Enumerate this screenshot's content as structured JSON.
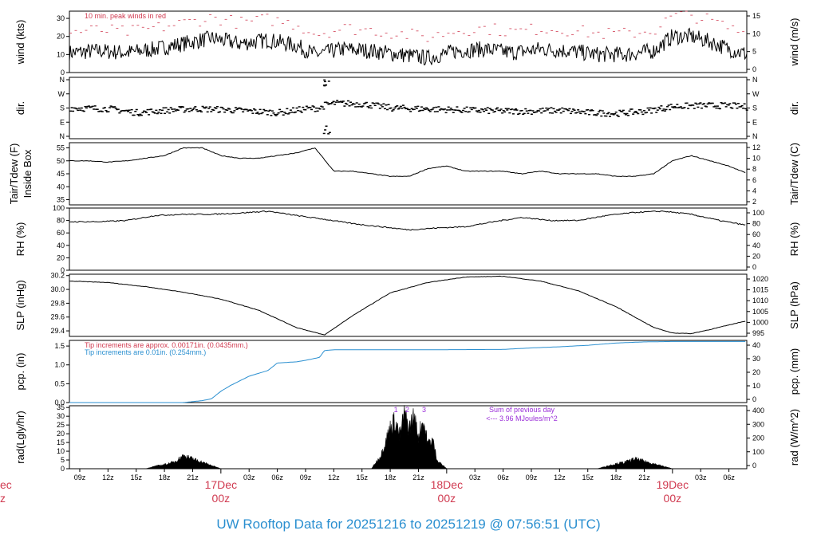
{
  "title": "UW Rooftop Data for 20251216  to  20251219 @ 07:56:51  (UTC)",
  "colors": {
    "main": "#000000",
    "peak": "#d03a50",
    "tip_new": "#2a8fd0",
    "note": "#9b30d9",
    "date": "#d03a50"
  },
  "x_axis": {
    "tick_labels": [
      "09z",
      "12z",
      "15z",
      "18z",
      "21z",
      "03z",
      "06z",
      "09z",
      "12z",
      "15z",
      "18z",
      "21z",
      "03z",
      "06z",
      "09z",
      "12z",
      "15z",
      "18z",
      "21z",
      "03z",
      "06z"
    ],
    "tick_hours": [
      9,
      12,
      15,
      18,
      21,
      27,
      30,
      33,
      36,
      39,
      42,
      45,
      51,
      54,
      57,
      60,
      63,
      66,
      69,
      75,
      78
    ],
    "date_labels": [
      {
        "hour": 24,
        "date": "17Dec",
        "time": "00z"
      },
      {
        "hour": 48,
        "date": "18Dec",
        "time": "00z"
      },
      {
        "hour": 72,
        "date": "19Dec",
        "time": "00z"
      }
    ],
    "left_cut_date": "ec",
    "left_cut_time": "z",
    "range_hours": [
      7.9,
      79.9
    ]
  },
  "chart_data": [
    {
      "type": "line",
      "ylabel_left": "wind (kts)",
      "ylabel_right": "wind (m/s)",
      "left_ticks": [
        "0",
        "10",
        "20",
        "30"
      ],
      "left_range": [
        0,
        34
      ],
      "right_ticks": [
        "0",
        "5",
        "10",
        "15"
      ],
      "annotation": "10 min. peak winds in red",
      "series": [
        {
          "values_hour": [
            8,
            11,
            14,
            17,
            20,
            23,
            26,
            29,
            32,
            34,
            37,
            40,
            43,
            46,
            49,
            52,
            55,
            58,
            61,
            64,
            67,
            70,
            72,
            74,
            76,
            78,
            80
          ],
          "values": [
            11,
            12,
            11,
            13,
            16,
            19,
            16,
            18,
            15,
            10,
            13,
            12,
            10,
            8,
            12,
            13,
            11,
            13,
            12,
            10,
            10,
            12,
            20,
            20,
            17,
            13,
            10
          ]
        }
      ]
    },
    {
      "type": "scatter",
      "ylabel_left": "dir.",
      "ylabel_right": "dir.",
      "left_ticks": [
        "N",
        "E",
        "S",
        "W",
        "N"
      ],
      "right_ticks": [
        "N",
        "E",
        "S",
        "W",
        "N"
      ],
      "series": [
        {
          "values_hour": [
            8,
            12,
            15,
            18,
            21,
            24,
            27,
            30,
            33,
            34.5,
            35,
            36,
            39,
            42,
            45,
            48,
            51,
            54,
            57,
            60,
            63,
            66,
            69,
            72,
            75,
            78,
            80
          ],
          "values_deg": [
            180,
            175,
            150,
            165,
            175,
            170,
            160,
            150,
            175,
            180,
            200,
            210,
            205,
            180,
            175,
            170,
            165,
            160,
            160,
            165,
            150,
            145,
            160,
            190,
            195,
            195,
            185
          ]
        }
      ]
    },
    {
      "type": "line",
      "ylabel_left": "Tair/Tdew (F)\nInside Box",
      "ylabel_right": "Tair/Tdew (C)",
      "left_ticks": [
        "35",
        "40",
        "45",
        "50",
        "55"
      ],
      "left_range": [
        33,
        57
      ],
      "right_ticks": [
        "2",
        "4",
        "6",
        "8",
        "10",
        "12"
      ],
      "series": [
        {
          "values_hour": [
            8,
            10,
            12,
            14,
            16,
            18,
            20,
            22,
            24,
            26,
            28,
            30,
            32,
            34,
            36,
            38,
            40,
            42,
            44,
            46,
            48,
            50,
            52,
            54,
            56,
            58,
            60,
            62,
            64,
            66,
            68,
            70,
            72,
            74,
            76,
            78,
            80
          ],
          "values": [
            50,
            50,
            49.5,
            50,
            51,
            52,
            55,
            55,
            52,
            51,
            51,
            52,
            53,
            55,
            46,
            46,
            45,
            44,
            44,
            47,
            48,
            46,
            46,
            46,
            45,
            46,
            45,
            45,
            45,
            44,
            44,
            45,
            50,
            52,
            50,
            48,
            45
          ]
        }
      ]
    },
    {
      "type": "line",
      "ylabel_left": "RH (%)",
      "ylabel_right": "RH (%)",
      "left_ticks": [
        "0",
        "20",
        "40",
        "60",
        "80",
        "100"
      ],
      "left_range": [
        0,
        100
      ],
      "right_ticks": [
        "0",
        "20",
        "40",
        "60",
        "80",
        "100"
      ],
      "series": [
        {
          "values_hour": [
            8,
            11,
            14,
            17,
            20,
            23,
            26,
            29,
            32,
            35,
            38,
            41,
            44,
            47,
            50,
            53,
            56,
            59,
            62,
            65,
            68,
            71,
            74,
            77,
            80
          ],
          "values": [
            78,
            78,
            80,
            88,
            90,
            90,
            92,
            95,
            88,
            82,
            75,
            70,
            65,
            68,
            70,
            78,
            85,
            80,
            80,
            88,
            93,
            95,
            90,
            80,
            72
          ]
        }
      ]
    },
    {
      "type": "line",
      "ylabel_left": "SLP (inHg)",
      "ylabel_right": "SLP (hPa)",
      "left_ticks": [
        "29.4",
        "29.6",
        "29.8",
        "30.0",
        "30.2"
      ],
      "left_range": [
        29.32,
        30.22
      ],
      "right_ticks": [
        "995",
        "1000",
        "1005",
        "1010",
        "1015",
        "1020"
      ],
      "series": [
        {
          "values_hour": [
            8,
            12,
            16,
            20,
            24,
            28,
            32,
            35,
            38,
            42,
            46,
            50,
            54,
            58,
            62,
            66,
            70,
            72,
            74,
            76,
            80
          ],
          "values": [
            30.12,
            30.1,
            30.04,
            29.96,
            29.86,
            29.7,
            29.45,
            29.34,
            29.62,
            29.95,
            30.1,
            30.18,
            30.19,
            30.12,
            29.98,
            29.75,
            29.45,
            29.37,
            29.36,
            29.42,
            29.55
          ]
        }
      ]
    },
    {
      "type": "line",
      "ylabel_left": "pcp. (in)",
      "ylabel_right": "pcp. (mm)",
      "left_ticks": [
        "0.0",
        "0.5",
        "1.0",
        "1.5"
      ],
      "left_range": [
        0,
        1.65
      ],
      "right_ticks": [
        "0",
        "10",
        "20",
        "30",
        "40"
      ],
      "annotation_old": "Tip increments are approx. 0.00171in. (0.0435mm.)",
      "annotation_new": "Tip increments are 0.01in. (0.254mm.)",
      "series": [
        {
          "values_hour": [
            8,
            20,
            22,
            23,
            24,
            25,
            27,
            29,
            30,
            32,
            33,
            34.5,
            35,
            36,
            45,
            54,
            57,
            60,
            63,
            66,
            69,
            72,
            75,
            78,
            80
          ],
          "values": [
            0,
            0,
            0.05,
            0.1,
            0.3,
            0.45,
            0.7,
            0.85,
            1.05,
            1.08,
            1.12,
            1.2,
            1.38,
            1.4,
            1.4,
            1.41,
            1.45,
            1.48,
            1.52,
            1.58,
            1.61,
            1.62,
            1.62,
            1.62,
            1.62
          ]
        }
      ]
    },
    {
      "type": "area",
      "ylabel_left": "rad(Lgly/hr)",
      "ylabel_right": "rad (W/m^2)",
      "left_ticks": [
        "0",
        "5",
        "10",
        "15",
        "20",
        "25",
        "30",
        "35"
      ],
      "left_range": [
        0,
        36
      ],
      "right_ticks": [
        "0",
        "100",
        "200",
        "300",
        "400"
      ],
      "annotation": "Sum of previous day",
      "annotation2": "<--- 3.96 MJoules/m^2",
      "peak_markers": [
        "1",
        "2",
        "3"
      ],
      "series": [
        {
          "values_hour": [
            16,
            17,
            18,
            19,
            20,
            21,
            22,
            23,
            24,
            40,
            41,
            42,
            42.5,
            43,
            43.5,
            44,
            44.5,
            45,
            45.5,
            46,
            46.5,
            47,
            48,
            64,
            65,
            66,
            67,
            68,
            69,
            70,
            71,
            72
          ],
          "values": [
            0,
            1.5,
            2.5,
            4,
            8,
            6,
            4,
            2,
            0,
            0,
            8,
            25,
            30,
            20,
            33,
            25,
            32,
            20,
            30,
            15,
            18,
            5,
            0,
            0,
            1.5,
            3,
            4,
            6,
            4.5,
            3,
            1.5,
            0
          ]
        }
      ]
    }
  ]
}
